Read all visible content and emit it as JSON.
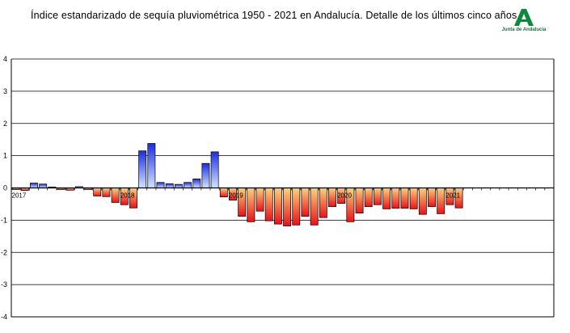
{
  "title": "Índice estandarizado de sequía pluviométrica 1950 - 2021 en Andalucía. Detalle de los últimos cinco años.",
  "logo": {
    "text": "Junta de Andalucía",
    "color": "#0a8a3c"
  },
  "chart_data": {
    "type": "bar",
    "title": "Índice estandarizado de sequía pluviométrica 1950 - 2021 en Andalucía. Detalle de los últimos cinco años.",
    "ylim": [
      -4,
      4
    ],
    "yticks": [
      -4,
      -3,
      -2,
      -1,
      0,
      1,
      2,
      3,
      4
    ],
    "grid": true,
    "n_slots": 60,
    "year_labels": [
      {
        "label": "2017",
        "index": 0
      },
      {
        "label": "2018",
        "index": 12
      },
      {
        "label": "2019",
        "index": 24
      },
      {
        "label": "2020",
        "index": 36
      },
      {
        "label": "2021",
        "index": 48
      }
    ],
    "values": [
      -0.05,
      -0.08,
      0.15,
      0.12,
      0.03,
      -0.05,
      -0.07,
      0.04,
      -0.05,
      -0.25,
      -0.27,
      -0.45,
      -0.52,
      -0.62,
      1.15,
      1.38,
      0.17,
      0.13,
      0.11,
      0.17,
      0.28,
      0.76,
      1.12,
      -0.28,
      -0.38,
      -0.88,
      -1.05,
      -0.72,
      -1.02,
      -1.12,
      -1.18,
      -1.15,
      -0.88,
      -1.15,
      -0.92,
      -0.58,
      -0.48,
      -1.05,
      -0.78,
      -0.58,
      -0.52,
      -0.65,
      -0.63,
      -0.63,
      -0.65,
      -0.82,
      -0.58,
      -0.8,
      -0.52,
      -0.62
    ],
    "colors": {
      "positive_top": "#1a2ee0",
      "positive_bottom": "#d4e4ff",
      "negative_top": "#ffd27a",
      "negative_bottom": "#e8121a"
    }
  }
}
